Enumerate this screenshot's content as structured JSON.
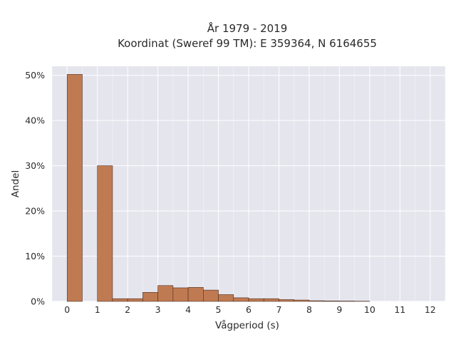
{
  "chart_data": {
    "type": "bar",
    "title_lines": [
      "År 1979 - 2019",
      "Koordinat (Sweref 99 TM): E 359364, N 6164655"
    ],
    "xlabel": "Vågperiod (s)",
    "ylabel": "Andel",
    "x_ticks": [
      "0",
      "1",
      "2",
      "3",
      "4",
      "5",
      "6",
      "7",
      "8",
      "9",
      "10",
      "11",
      "12"
    ],
    "y_ticks": [
      "0%",
      "10%",
      "20%",
      "30%",
      "40%",
      "50%"
    ],
    "xlim": [
      -0.5,
      12.5
    ],
    "ylim": [
      0,
      0.52
    ],
    "grid": true,
    "bin_width": 0.5,
    "bins": [
      {
        "x": 0.0,
        "value": 0.502
      },
      {
        "x": 1.0,
        "value": 0.3
      },
      {
        "x": 1.5,
        "value": 0.006
      },
      {
        "x": 2.0,
        "value": 0.006
      },
      {
        "x": 2.5,
        "value": 0.02
      },
      {
        "x": 3.0,
        "value": 0.035
      },
      {
        "x": 3.5,
        "value": 0.03
      },
      {
        "x": 4.0,
        "value": 0.031
      },
      {
        "x": 4.5,
        "value": 0.025
      },
      {
        "x": 5.0,
        "value": 0.015
      },
      {
        "x": 5.5,
        "value": 0.008
      },
      {
        "x": 6.0,
        "value": 0.006
      },
      {
        "x": 6.5,
        "value": 0.006
      },
      {
        "x": 7.0,
        "value": 0.004
      },
      {
        "x": 7.5,
        "value": 0.003
      },
      {
        "x": 8.0,
        "value": 0.0015
      },
      {
        "x": 8.5,
        "value": 0.001
      },
      {
        "x": 9.0,
        "value": 0.0008
      },
      {
        "x": 9.5,
        "value": 0.0005
      }
    ],
    "colors": {
      "bar": "#c07a52",
      "plot_bg": "#e5e5ee",
      "grid": "#ffffff"
    }
  }
}
